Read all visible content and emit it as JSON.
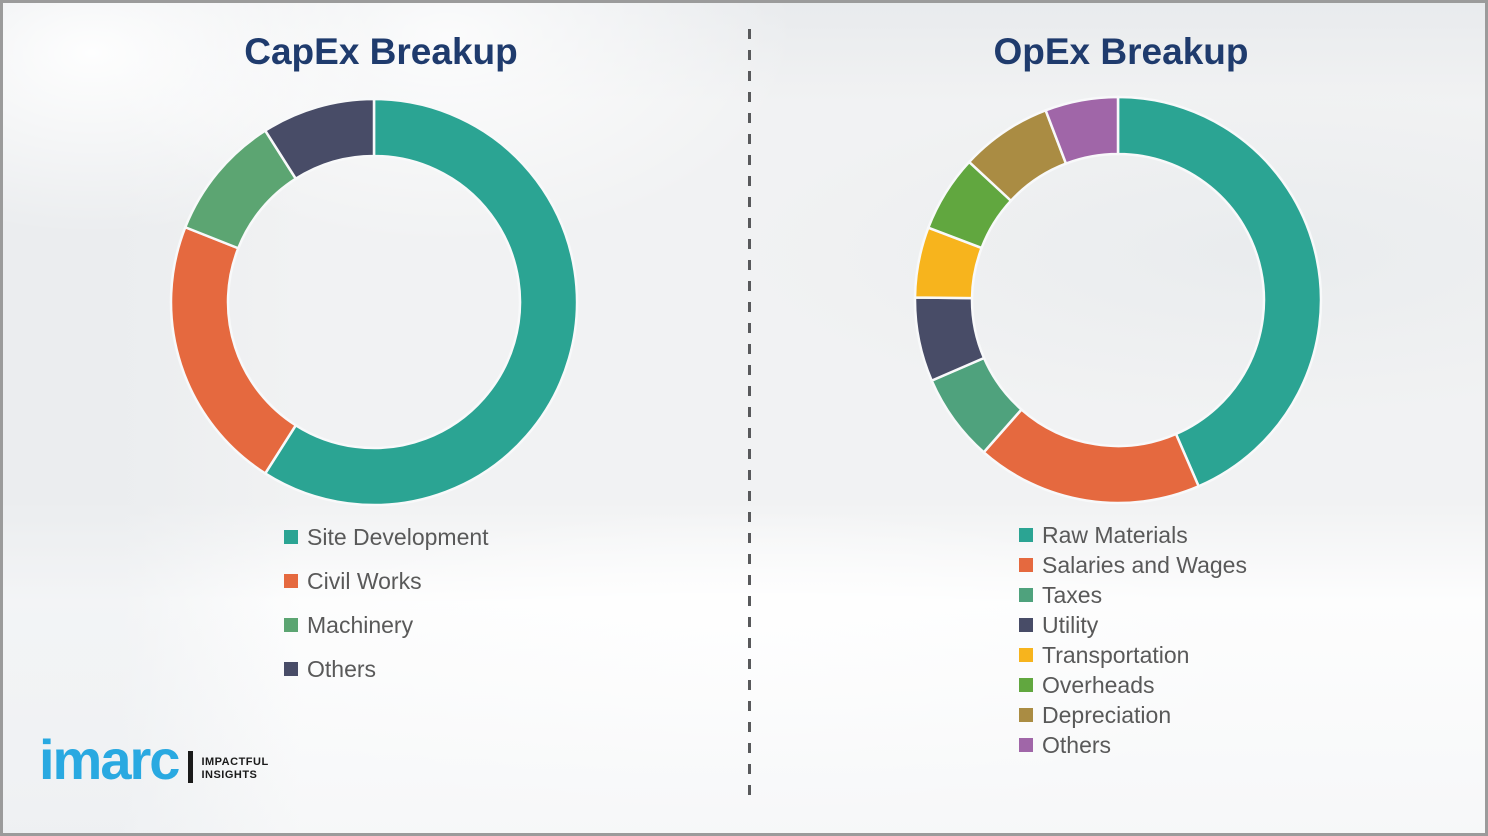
{
  "page": {
    "background_color": "#F1F2F3",
    "frame_border_color": "#9B9B9B",
    "divider_color": "#58595B",
    "title_color": "#1F3B6D",
    "legend_text_color": "#595959"
  },
  "chart_data": [
    {
      "type": "pie",
      "variant": "donut",
      "title": "CapEx Breakup",
      "categories": [
        "Site Development",
        "Civil Works",
        "Machinery",
        "Others"
      ],
      "values": [
        59,
        22,
        10,
        9
      ],
      "colors": [
        "#2BA493",
        "#E5693F",
        "#5CA572",
        "#484C67"
      ],
      "start_angle_deg": 0,
      "direction": "clockwise",
      "data_labels": false,
      "legend_position": "below-left"
    },
    {
      "type": "pie",
      "variant": "donut",
      "title": "OpEx Breakup",
      "categories": [
        "Raw Materials",
        "Salaries and Wages",
        "Taxes",
        "Utility",
        "Transportation",
        "Overheads",
        "Depreciation",
        "Others"
      ],
      "values": [
        43.5,
        18,
        7,
        6.7,
        5.6,
        6.1,
        7.3,
        5.8
      ],
      "colors": [
        "#2BA493",
        "#E5693F",
        "#4FA27D",
        "#484C67",
        "#F7B41D",
        "#61A73F",
        "#AA8C43",
        "#A066A8"
      ],
      "start_angle_deg": 0,
      "direction": "clockwise",
      "data_labels": false,
      "legend_position": "below-left"
    }
  ],
  "logo": {
    "brand": "imarc",
    "tagline_line1": "IMPACTFUL",
    "tagline_line2": "INSIGHTS",
    "brand_color": "#29A9E1",
    "text_color": "#1A1A1A"
  }
}
